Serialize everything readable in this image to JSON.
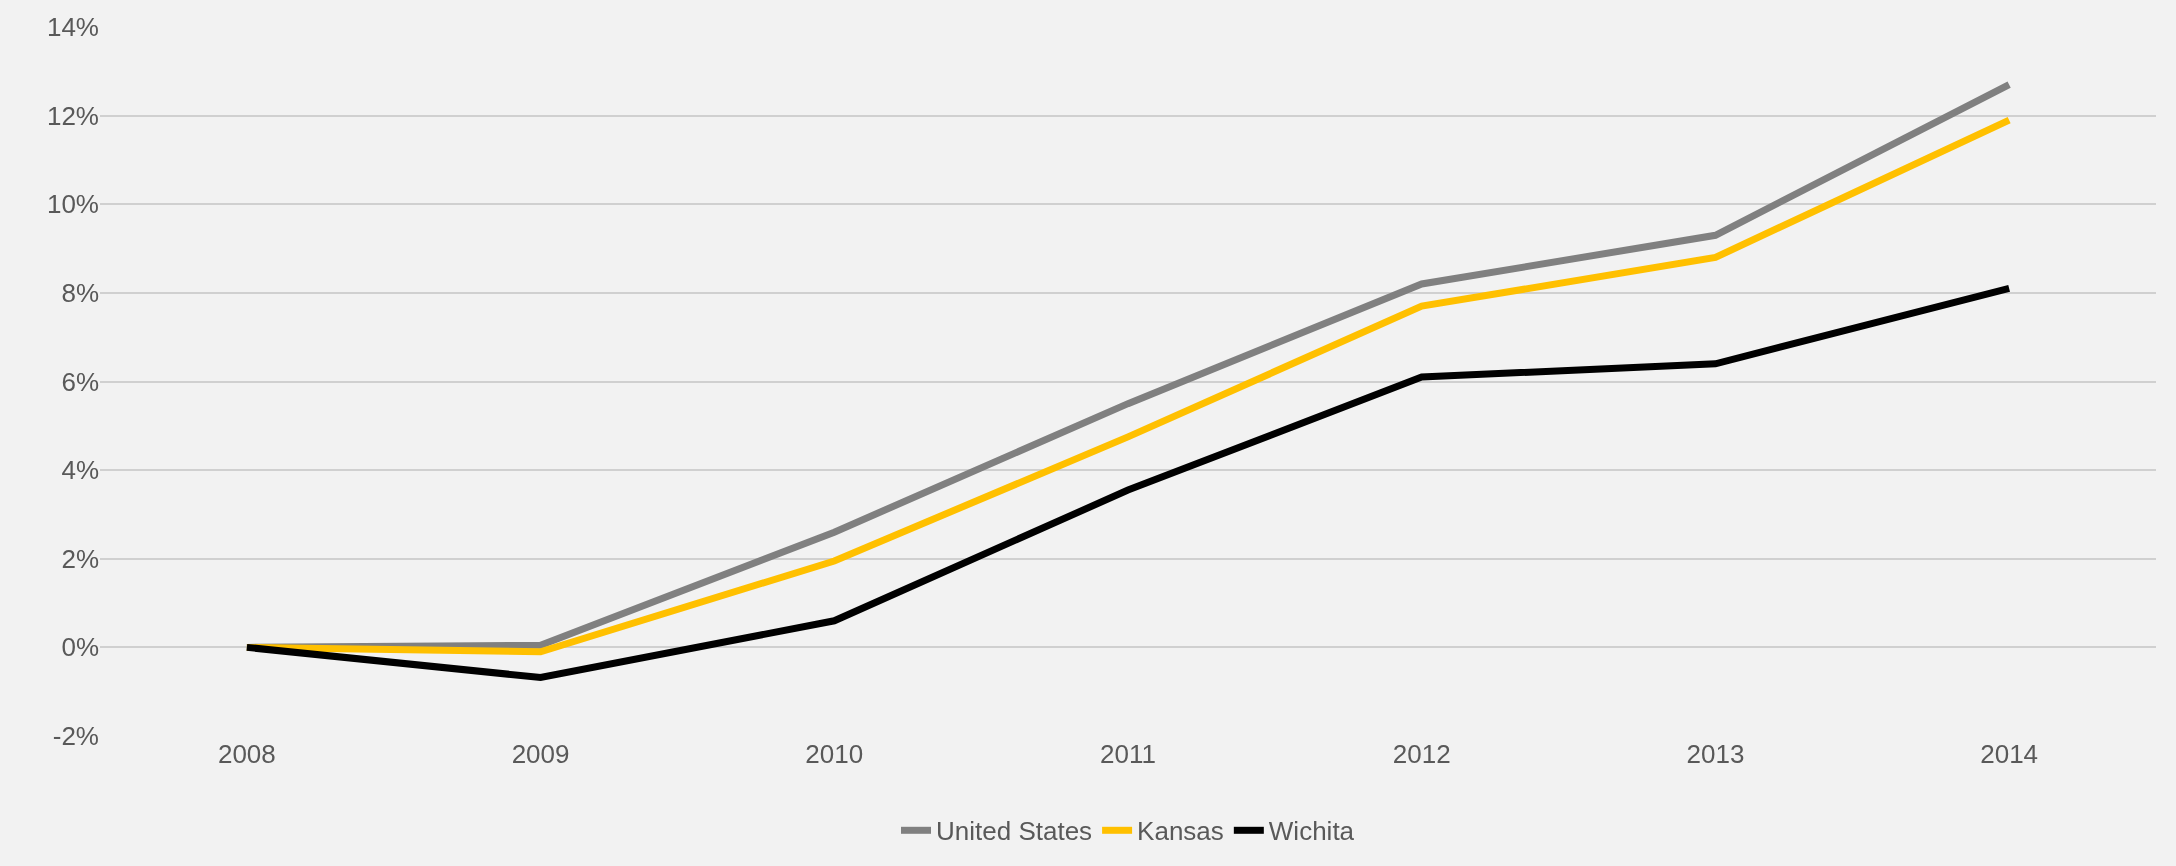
{
  "chart_data": {
    "type": "line",
    "categories": [
      "2008",
      "2009",
      "2010",
      "2011",
      "2012",
      "2013",
      "2014"
    ],
    "series": [
      {
        "name": "United States",
        "color": "#808080",
        "values": [
          0,
          0.05,
          2.6,
          5.5,
          8.2,
          9.3,
          12.7
        ]
      },
      {
        "name": "Kansas",
        "color": "#ffc000",
        "values": [
          0,
          -0.1,
          1.95,
          4.75,
          7.7,
          8.8,
          11.9
        ]
      },
      {
        "name": "Wichita",
        "color": "#000000",
        "values": [
          0,
          -0.68,
          0.6,
          3.55,
          6.1,
          6.4,
          8.1
        ]
      }
    ],
    "ylim": [
      -2,
      14
    ],
    "yticks": [
      {
        "value": -2,
        "label": "-2%"
      },
      {
        "value": 0,
        "label": "0%"
      },
      {
        "value": 2,
        "label": "2%"
      },
      {
        "value": 4,
        "label": "4%"
      },
      {
        "value": 6,
        "label": "6%"
      },
      {
        "value": 8,
        "label": "8%"
      },
      {
        "value": 10,
        "label": "10%"
      },
      {
        "value": 12,
        "label": "12%"
      },
      {
        "value": 14,
        "label": "14%"
      }
    ],
    "grid": "y",
    "legend": "bottom",
    "marker": "none",
    "line_style": "solid"
  }
}
